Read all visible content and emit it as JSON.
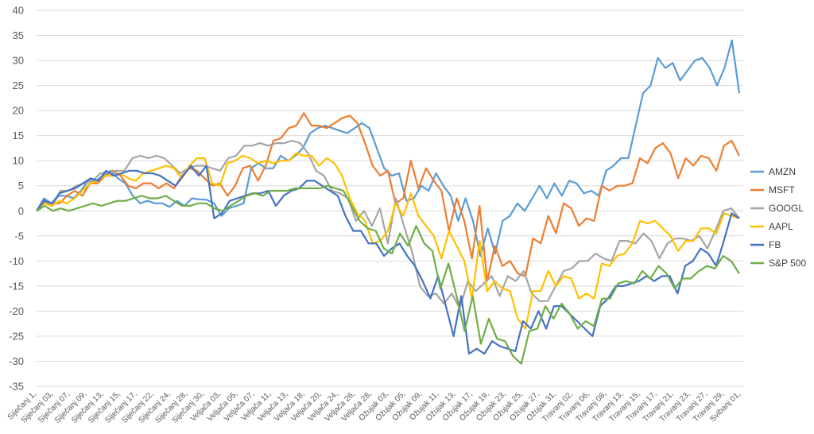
{
  "chart_data": {
    "type": "line",
    "title": "",
    "xlabel": "",
    "ylabel": "",
    "ylim": [
      -35,
      40
    ],
    "yticks": [
      -35,
      -30,
      -25,
      -20,
      -15,
      -10,
      -5,
      0,
      5,
      10,
      15,
      20,
      25,
      30,
      35,
      40
    ],
    "grid": "horizontal",
    "legend_position": "right",
    "x_tick_labels": [
      "Siječanj 1,",
      "Siječanj 03,",
      "Siječanj 07,",
      "Siječanj 09,",
      "Siječanj 13,",
      "Siječanj 15,",
      "Siječanj 17,",
      "Siječanj 22,",
      "Siječanj 24,",
      "Siječanj 28,",
      "Siječanj 30,",
      "Veljača 03,",
      "Veljača 05,",
      "Veljača 07,",
      "Veljača 11,",
      "Veljača 13,",
      "Veljača 18,",
      "Veljača 20,",
      "Veljača 24,",
      "Veljača 26,",
      "Veljača 28,",
      "Ožujak 03,",
      "Ožujak 05,",
      "Ožujak 09,",
      "Ožujak 11,",
      "Ožujak 13,",
      "Ožujak 17,",
      "Ožujak 19,",
      "Ožujak 23,",
      "Ožujak 25,",
      "Ožujak 27,",
      "Ožujak 31,",
      "Travanj 02,",
      "Travanj 06,",
      "Travanj 08,",
      "Travanj 13,",
      "Travanj 15,",
      "Travanj 17,",
      "Travanj 21,",
      "Travanj 23,",
      "Travanj 27,",
      "Travanj 29,",
      "Svibanj 01,"
    ],
    "series": [
      {
        "name": "AMZN",
        "color": "#5B9BD5",
        "values": [
          0,
          2.5,
          1.5,
          3,
          3,
          2.5,
          4,
          6,
          6,
          7,
          8,
          6.5,
          5.5,
          3,
          1.5,
          2,
          1.5,
          1.5,
          0.8,
          2,
          1,
          2.5,
          2.3,
          2.2,
          1.5,
          -1,
          0.5,
          1,
          1.5,
          8.5,
          9.5,
          8.5,
          8.5,
          11,
          10,
          11,
          12.5,
          15.5,
          16.5,
          17,
          16.5,
          16,
          15.5,
          16.5,
          17.5,
          16.5,
          12.5,
          8.5,
          7,
          7.5,
          2,
          2.5,
          5,
          4,
          7.5,
          5,
          3,
          -2,
          2.5,
          -2,
          -9,
          -3.5,
          -8.5,
          -2,
          -1,
          1.5,
          0,
          2.5,
          5,
          2.5,
          5.5,
          3,
          6,
          5.5,
          3.5,
          4,
          3,
          8,
          9,
          10.5,
          10.5,
          17,
          23.5,
          25,
          30.5,
          28.5,
          29.5,
          26,
          28,
          30,
          30.5,
          28.5,
          25,
          28.5,
          34,
          23.5
        ]
      },
      {
        "name": "MSFT",
        "color": "#ED7D31",
        "values": [
          0,
          2,
          1.5,
          1.5,
          3,
          4,
          3,
          5.5,
          5.5,
          7,
          8,
          7,
          5,
          4.5,
          5.5,
          5.5,
          4.5,
          5.5,
          4.5,
          7,
          8.5,
          8,
          6.5,
          5,
          5.5,
          3,
          5,
          8.5,
          9,
          6,
          9,
          14,
          14.5,
          16.5,
          17,
          19.5,
          17,
          17,
          16.5,
          17.5,
          18.5,
          19,
          17.5,
          13.5,
          9,
          7,
          8,
          1.5,
          2.5,
          10,
          4.5,
          8.5,
          6,
          4,
          -4,
          2.5,
          -2,
          -9.5,
          1,
          -14,
          -7,
          -11,
          -10,
          -12.5,
          -13,
          -5.5,
          -6.5,
          -1,
          -4.5,
          1.5,
          0.5,
          -3,
          -1.5,
          -2,
          5,
          4,
          5,
          5,
          5.5,
          10.5,
          9.5,
          12.5,
          13.5,
          11.5,
          6.5,
          10.5,
          9,
          11,
          10.5,
          8,
          13,
          14,
          11
        ]
      },
      {
        "name": "GOOGL",
        "color": "#A5A5A5",
        "values": [
          0,
          2,
          1,
          4,
          4,
          5,
          5.5,
          6,
          7.5,
          7.5,
          8,
          8,
          10.5,
          11,
          10.5,
          11,
          10.5,
          9,
          7.5,
          8.5,
          9,
          9,
          8.5,
          8,
          10.5,
          11,
          13,
          13,
          13.5,
          13,
          13.5,
          13.5,
          14,
          13.5,
          11.5,
          8,
          7,
          4,
          3.5,
          2.5,
          -2,
          0,
          -3,
          0.5,
          -6.5,
          2.5,
          -3,
          -8,
          -15,
          -17,
          -16.5,
          -18.5,
          -16.5,
          -19.5,
          -14,
          -16,
          -14.5,
          -13,
          -17,
          -13,
          -14,
          -12,
          -16.5,
          -18,
          -18,
          -15,
          -12,
          -11.5,
          -10,
          -10,
          -8.5,
          -9.5,
          -10,
          -6,
          -6,
          -6.5,
          -4.5,
          -6,
          -9.5,
          -6.5,
          -5.5,
          -5.5,
          -6,
          -5,
          -7.5,
          -4,
          0,
          0.5,
          -1.5
        ]
      },
      {
        "name": "AAPL",
        "color": "#FFC000",
        "values": [
          0,
          1.5,
          1,
          2,
          1.5,
          2.5,
          4,
          5.5,
          6,
          7,
          7,
          7.5,
          6.5,
          6,
          7.5,
          8,
          8.5,
          9,
          8.5,
          6.5,
          9,
          10.5,
          10.5,
          5.5,
          5,
          9.5,
          10,
          11,
          10.5,
          9.5,
          10,
          9.5,
          10,
          10,
          11.5,
          11,
          11,
          9,
          10.5,
          9.5,
          7,
          2.5,
          -0.5,
          -2,
          -6.5,
          -6,
          -4,
          1.5,
          -1,
          3.5,
          -1,
          -3,
          -5,
          -9.5,
          -4,
          -7,
          -10,
          -17.5,
          -6,
          -16,
          -14,
          -15.5,
          -16,
          -21.5,
          -23.5,
          -16,
          -16,
          -12,
          -15,
          -13,
          -13.5,
          -17.5,
          -16.5,
          -17.5,
          -10.5,
          -11,
          -9,
          -8.5,
          -6.5,
          -2,
          -2.5,
          -2,
          -3.5,
          -5,
          -8,
          -6,
          -6,
          -3.5,
          -3.5,
          -4.5,
          -0.5,
          -1,
          -1.5
        ]
      },
      {
        "name": "FB",
        "color": "#4472C4",
        "values": [
          0,
          2,
          1.5,
          3.5,
          4,
          4.5,
          5.5,
          6.5,
          6,
          8,
          7,
          7.5,
          8,
          8,
          7.5,
          7.5,
          7,
          6,
          5,
          7,
          9,
          7,
          9,
          -1.5,
          -0.5,
          2,
          2.5,
          3,
          3.5,
          3.5,
          4,
          1,
          3,
          4,
          4.5,
          6,
          6,
          5,
          4,
          3,
          -1,
          -4,
          -4,
          -6.5,
          -6.5,
          -9,
          -7.5,
          -6.5,
          -9,
          -11,
          -14,
          -17.5,
          -13,
          -19,
          -25,
          -17,
          -28.5,
          -27.5,
          -28.5,
          -26,
          -27,
          -27.5,
          -28,
          -22,
          -23.5,
          -20,
          -23.5,
          -19,
          -19,
          -20.5,
          -22,
          -23.5,
          -25,
          -19,
          -17.5,
          -15,
          -15,
          -14.5,
          -14,
          -13,
          -14,
          -13,
          -13,
          -16.5,
          -11,
          -10,
          -7.5,
          -8.5,
          -11,
          -6,
          -0.5,
          -1.5
        ]
      },
      {
        "name": "S&P 500",
        "color": "#70AD47",
        "values": [
          0,
          1,
          0,
          0.5,
          0,
          0.5,
          1,
          1.5,
          1,
          1.5,
          2,
          2,
          2.5,
          3,
          2.5,
          2.5,
          3,
          2,
          1,
          1,
          1.5,
          1.5,
          0.5,
          0,
          1,
          2,
          3,
          3.5,
          3,
          4,
          4,
          4,
          4.5,
          4.5,
          4.5,
          4.5,
          5,
          4.5,
          4,
          1,
          -2,
          -3.5,
          -4,
          -7.5,
          -8.5,
          -4.5,
          -7,
          -3,
          -6.5,
          -8,
          -15.5,
          -10.5,
          -17,
          -24,
          -17,
          -26.5,
          -21.5,
          -25.5,
          -26,
          -29,
          -30.5,
          -24,
          -23.5,
          -19,
          -21.5,
          -18.5,
          -20.5,
          -23.5,
          -22,
          -23,
          -17.5,
          -17.5,
          -14.5,
          -14,
          -14.5,
          -12,
          -13.5,
          -11,
          -12.5,
          -15.5,
          -13.5,
          -13.5,
          -12,
          -11,
          -11.5,
          -9,
          -10,
          -12.5
        ]
      }
    ]
  }
}
